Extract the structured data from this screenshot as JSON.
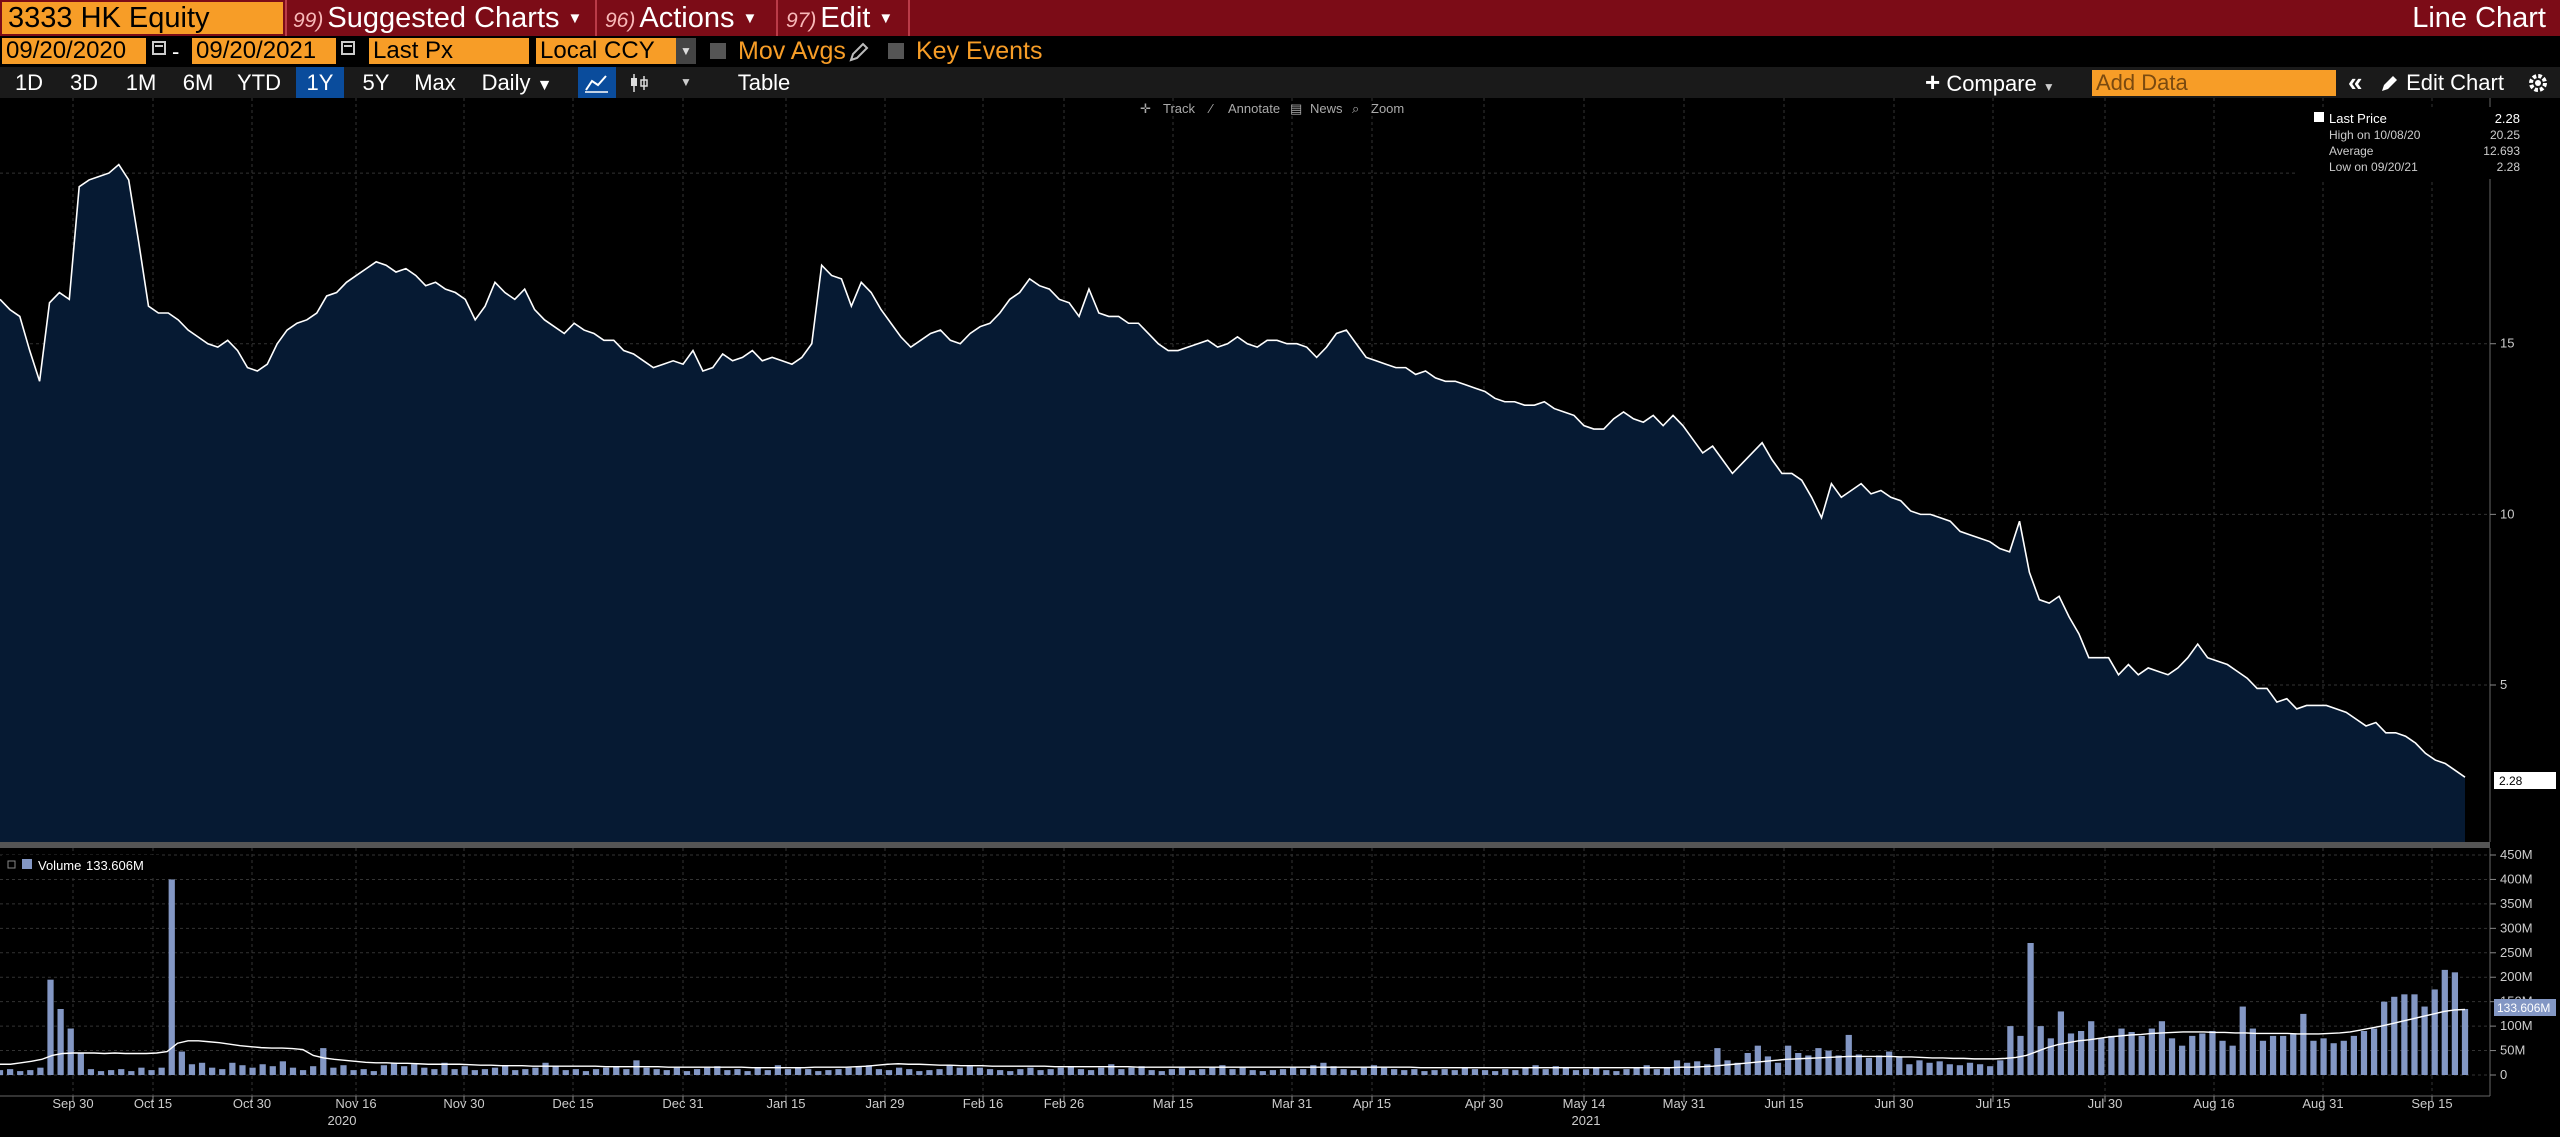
{
  "header": {
    "ticker": "3333 HK Equity",
    "menus": [
      {
        "num": "99)",
        "label": "Suggested Charts"
      },
      {
        "num": "96)",
        "label": "Actions"
      },
      {
        "num": "97)",
        "label": "Edit"
      }
    ],
    "chart_type": "Line Chart"
  },
  "settings": {
    "start_date": "09/20/2020",
    "date_sep": "-",
    "end_date": "09/20/2021",
    "field": "Last Px",
    "currency": "Local CCY",
    "mov_avgs": "Mov Avgs",
    "key_events": "Key Events"
  },
  "toolbar": {
    "periods": [
      "1D",
      "3D",
      "1M",
      "6M",
      "YTD",
      "1Y",
      "5Y",
      "Max"
    ],
    "active_period": "1Y",
    "frequency": "Daily",
    "table": "Table",
    "compare": "Compare",
    "add_data_placeholder": "Add Data",
    "edit_chart": "Edit Chart"
  },
  "chart_tools": [
    "Track",
    "Annotate",
    "News",
    "Zoom"
  ],
  "legend": {
    "rows": [
      {
        "label": "Last Price",
        "value": "2.28"
      },
      {
        "label": "High on 10/08/20",
        "value": "20.25"
      },
      {
        "label": "Average",
        "value": "12.693"
      },
      {
        "label": "Low on 09/20/21",
        "value": "2.28"
      }
    ]
  },
  "price_tag": "2.28",
  "volume_legend": {
    "label": "Volume",
    "value": "133.606M"
  },
  "volume_tag": "133.606M",
  "x_ticks": [
    "Sep 30",
    "Oct 15",
    "Oct 30",
    "Nov 16",
    "Nov 30",
    "Dec 15",
    "Dec 31",
    "Jan 15",
    "Jan 29",
    "Feb 16",
    "Feb 26",
    "Mar 15",
    "Mar 31",
    "Apr 15",
    "Apr 30",
    "May 14",
    "May 31",
    "Jun 15",
    "Jun 30",
    "Jul 15",
    "Jul 30",
    "Aug 16",
    "Aug 31",
    "Sep 15"
  ],
  "year_labels": [
    "2020",
    "2021"
  ],
  "colors": {
    "accent": "#f79d27",
    "topbar": "#7c0c17",
    "area": "#061a33",
    "volume_bar": "#8397c4",
    "active_tab": "#0a4c9c"
  },
  "chart_data": [
    {
      "type": "area",
      "series": [
        {
          "name": "Last Price",
          "values": [
            16.3,
            16.0,
            15.8,
            14.8,
            13.9,
            16.2,
            16.5,
            16.3,
            19.6,
            19.8,
            19.9,
            20.0,
            20.25,
            19.8,
            18.0,
            16.1,
            15.9,
            15.9,
            15.7,
            15.4,
            15.2,
            15.0,
            14.9,
            15.1,
            14.8,
            14.3,
            14.2,
            14.4,
            15.0,
            15.4,
            15.6,
            15.7,
            15.9,
            16.4,
            16.5,
            16.8,
            17.0,
            17.2,
            17.4,
            17.3,
            17.1,
            17.2,
            17.0,
            16.7,
            16.8,
            16.6,
            16.5,
            16.3,
            15.7,
            16.1,
            16.8,
            16.5,
            16.3,
            16.6,
            16.0,
            15.7,
            15.5,
            15.3,
            15.6,
            15.4,
            15.3,
            15.1,
            15.1,
            14.8,
            14.7,
            14.5,
            14.3,
            14.4,
            14.5,
            14.4,
            14.8,
            14.2,
            14.3,
            14.7,
            14.5,
            14.6,
            14.8,
            14.5,
            14.6,
            14.5,
            14.4,
            14.6,
            15.0,
            17.3,
            17.0,
            16.9,
            16.1,
            16.8,
            16.5,
            16.0,
            15.6,
            15.2,
            14.9,
            15.1,
            15.3,
            15.4,
            15.1,
            15.0,
            15.3,
            15.5,
            15.6,
            15.9,
            16.3,
            16.5,
            16.9,
            16.7,
            16.6,
            16.3,
            16.2,
            15.8,
            16.6,
            15.9,
            15.8,
            15.8,
            15.6,
            15.6,
            15.3,
            15.0,
            14.8,
            14.8,
            14.9,
            15.0,
            15.1,
            14.9,
            15.0,
            15.2,
            15.0,
            14.9,
            15.1,
            15.1,
            15.0,
            15.0,
            14.9,
            14.6,
            14.9,
            15.3,
            15.4,
            15.0,
            14.6,
            14.5,
            14.4,
            14.3,
            14.3,
            14.1,
            14.2,
            14.0,
            13.9,
            13.9,
            13.8,
            13.7,
            13.6,
            13.4,
            13.3,
            13.3,
            13.2,
            13.2,
            13.3,
            13.1,
            13.0,
            12.9,
            12.6,
            12.5,
            12.5,
            12.8,
            13.0,
            12.8,
            12.7,
            12.9,
            12.6,
            12.9,
            12.6,
            12.2,
            11.8,
            12.0,
            11.6,
            11.2,
            11.5,
            11.8,
            12.1,
            11.6,
            11.2,
            11.2,
            11.0,
            10.5,
            9.9,
            10.9,
            10.5,
            10.7,
            10.9,
            10.6,
            10.7,
            10.5,
            10.4,
            10.1,
            10.0,
            10.0,
            9.9,
            9.8,
            9.5,
            9.4,
            9.3,
            9.2,
            9.0,
            8.9,
            9.8,
            8.3,
            7.5,
            7.4,
            7.6,
            7.0,
            6.5,
            5.8,
            5.8,
            5.8,
            5.3,
            5.6,
            5.3,
            5.5,
            5.4,
            5.3,
            5.5,
            5.8,
            6.2,
            5.8,
            5.7,
            5.6,
            5.4,
            5.2,
            4.9,
            4.9,
            4.5,
            4.6,
            4.3,
            4.4,
            4.4,
            4.4,
            4.3,
            4.2,
            4.0,
            3.8,
            3.9,
            3.6,
            3.6,
            3.5,
            3.3,
            3.0,
            2.8,
            2.7,
            2.5,
            2.3
          ]
        }
      ],
      "y_ticks": [
        5,
        10,
        15,
        20
      ],
      "ylim": [
        0.4,
        22.2
      ],
      "grid": true,
      "legend_position": "top-right"
    },
    {
      "type": "bar",
      "series": [
        {
          "name": "Volume",
          "values": [
            10,
            12,
            8,
            10,
            15,
            195,
            135,
            95,
            45,
            12,
            8,
            10,
            12,
            8,
            15,
            10,
            15,
            400,
            48,
            22,
            25,
            15,
            12,
            25,
            20,
            15,
            22,
            18,
            28,
            15,
            10,
            18,
            55,
            15,
            20,
            10,
            12,
            8,
            20,
            25,
            18,
            22,
            15,
            12,
            25,
            12,
            18,
            10,
            12,
            15,
            20,
            10,
            12,
            15,
            25,
            18,
            10,
            12,
            8,
            12,
            15,
            18,
            12,
            30,
            15,
            12,
            10,
            15,
            8,
            12,
            15,
            18,
            10,
            12,
            8,
            15,
            10,
            20,
            12,
            15,
            12,
            8,
            10,
            12,
            15,
            18,
            20,
            12,
            10,
            15,
            12,
            8,
            10,
            12,
            20,
            15,
            18,
            15,
            12,
            10,
            8,
            12,
            15,
            10,
            12,
            15,
            18,
            12,
            10,
            15,
            22,
            12,
            15,
            18,
            10,
            8,
            12,
            15,
            10,
            12,
            15,
            20,
            12,
            15,
            10,
            8,
            10,
            12,
            15,
            12,
            20,
            25,
            18,
            12,
            10,
            15,
            20,
            15,
            12,
            10,
            12,
            8,
            10,
            12,
            10,
            15,
            12,
            10,
            8,
            12,
            10,
            15,
            20,
            12,
            18,
            15,
            10,
            12,
            15,
            10,
            8,
            12,
            15,
            20,
            12,
            15,
            30,
            25,
            28,
            22,
            55,
            30,
            25,
            45,
            60,
            38,
            25,
            60,
            45,
            40,
            55,
            50,
            40,
            82,
            42,
            35,
            40,
            48,
            38,
            22,
            30,
            25,
            28,
            22,
            20,
            25,
            22,
            18,
            30,
            100,
            80,
            270,
            100,
            75,
            130,
            85,
            90,
            110,
            75,
            80,
            95,
            88,
            80,
            95,
            110,
            75,
            60,
            80,
            85,
            90,
            70,
            60,
            140,
            95,
            70,
            80,
            80,
            85,
            125,
            70,
            75,
            65,
            70,
            80,
            90,
            95,
            150,
            160,
            165,
            165,
            140,
            175,
            215,
            210,
            135
          ]
        },
        {
          "name": "Volume SMA",
          "values": [
            22,
            22,
            25,
            28,
            32,
            40,
            44,
            45,
            45,
            45,
            44,
            45,
            44,
            44,
            44,
            45,
            48,
            65,
            70,
            70,
            68,
            66,
            63,
            60,
            58,
            56,
            55,
            55,
            54,
            52,
            40,
            35,
            32,
            30,
            28,
            26,
            25,
            25,
            24,
            24,
            23,
            22,
            22,
            22,
            22,
            21,
            20,
            20,
            19,
            19,
            19,
            18,
            18,
            18,
            18,
            18,
            18,
            18,
            17,
            17,
            17,
            17,
            17,
            17,
            16,
            16,
            16,
            16,
            16,
            16,
            16,
            16,
            15,
            15,
            15,
            15,
            15,
            15,
            16,
            16,
            16,
            16,
            17,
            18,
            20,
            22,
            23,
            22,
            22,
            21,
            20,
            20,
            19,
            19,
            19,
            18,
            18,
            18,
            18,
            18,
            18,
            17,
            17,
            17,
            17,
            17,
            17,
            17,
            17,
            16,
            16,
            16,
            16,
            16,
            16,
            16,
            16,
            16,
            16,
            16,
            16,
            16,
            16,
            16,
            16,
            16,
            16,
            16,
            16,
            16,
            16,
            16,
            16,
            16,
            16,
            16,
            15,
            15,
            15,
            15,
            15,
            15,
            15,
            15,
            15,
            15,
            15,
            15,
            15,
            15,
            15,
            15,
            15,
            15,
            15,
            15,
            15,
            15,
            15,
            15,
            15,
            16,
            16,
            17,
            18,
            20,
            22,
            24,
            26,
            28,
            30,
            32,
            33,
            34,
            35,
            36,
            37,
            38,
            38,
            38,
            38,
            38,
            37,
            37,
            36,
            35,
            35,
            34,
            34,
            33,
            33,
            33,
            34,
            36,
            40,
            48,
            56,
            62,
            66,
            70,
            72,
            75,
            78,
            80,
            82,
            83,
            85,
            86,
            87,
            88,
            88,
            88,
            87,
            87,
            86,
            86,
            85,
            85,
            85,
            85,
            84,
            84,
            84,
            85,
            86,
            88,
            92,
            96,
            100,
            105,
            110,
            115,
            120,
            125,
            130,
            133,
            134
          ]
        }
      ],
      "y_ticks": [
        "0",
        "50M",
        "100M",
        "150M",
        "200M",
        "250M",
        "300M",
        "350M",
        "400M",
        "450M"
      ],
      "ylim": [
        0,
        450
      ],
      "grid": true,
      "legend_position": "top-left"
    }
  ]
}
